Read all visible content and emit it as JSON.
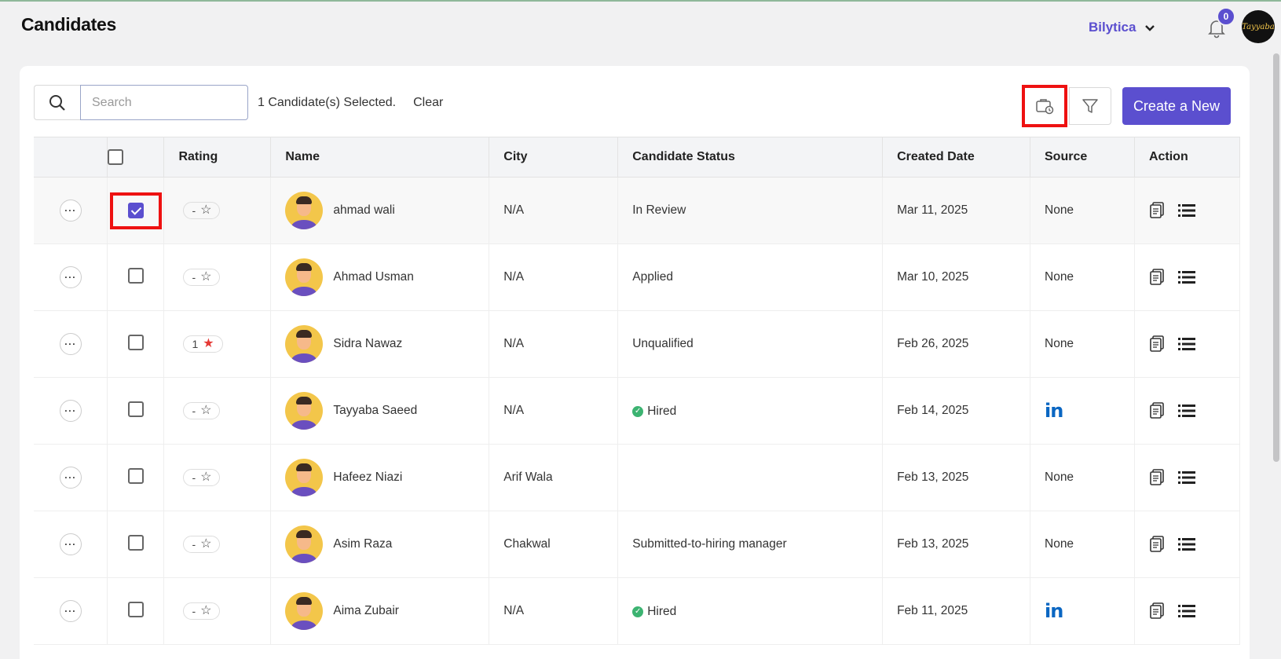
{
  "header": {
    "title": "Candidates",
    "org": "Bilytica",
    "notification_count": "0",
    "avatar_text": "Tayyaba"
  },
  "toolbar": {
    "search_placeholder": "Search",
    "selected_text": "1 Candidate(s) Selected.",
    "clear_label": "Clear",
    "create_label": "Create a New"
  },
  "table": {
    "columns": [
      "Rating",
      "Name",
      "City",
      "Candidate Status",
      "Created Date",
      "Source",
      "Action"
    ],
    "rows": [
      {
        "rating": "-",
        "name": "ahmad wali",
        "city": "N/A",
        "status": "In Review",
        "date": "Mar 11, 2025",
        "source": "None",
        "checked": true
      },
      {
        "rating": "-",
        "name": "Ahmad Usman",
        "city": "N/A",
        "status": "Applied",
        "date": "Mar 10, 2025",
        "source": "None",
        "checked": false
      },
      {
        "rating": "1",
        "name": "Sidra Nawaz",
        "city": "N/A",
        "status": "Unqualified",
        "date": "Feb 26, 2025",
        "source": "None",
        "checked": false
      },
      {
        "rating": "-",
        "name": "Tayyaba Saeed",
        "city": "N/A",
        "status": "Hired",
        "date": "Feb 14, 2025",
        "source": "in",
        "checked": false
      },
      {
        "rating": "-",
        "name": "Hafeez Niazi",
        "city": "Arif Wala",
        "status": "",
        "date": "Feb 13, 2025",
        "source": "None",
        "checked": false
      },
      {
        "rating": "-",
        "name": "Asim Raza",
        "city": "Chakwal",
        "status": "Submitted-to-hiring manager",
        "date": "Feb 13, 2025",
        "source": "None",
        "checked": false
      },
      {
        "rating": "-",
        "name": "Aima Zubair",
        "city": "N/A",
        "status": "Hired",
        "date": "Feb 11, 2025",
        "source": "in",
        "checked": false
      }
    ]
  },
  "colors": {
    "accent": "#5b4fcf",
    "highlight": "#e11111",
    "linkedin": "#0a66c2",
    "hired": "#3cb371"
  }
}
